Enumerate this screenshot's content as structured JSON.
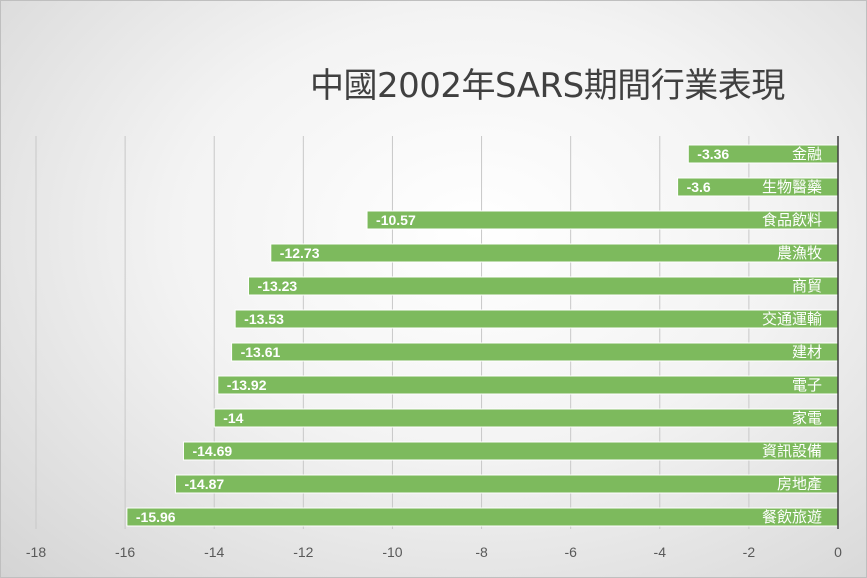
{
  "chart_data": {
    "type": "bar",
    "orientation": "horizontal",
    "title": "中國2002年SARS期間行業表現",
    "xlabel": "",
    "ylabel": "",
    "xlim": [
      -18,
      0
    ],
    "x_ticks": [
      -18,
      -16,
      -14,
      -12,
      -10,
      -8,
      -6,
      -4,
      -2,
      0
    ],
    "grid": "vertical",
    "legend": "none",
    "bar_color": "#7dba5d",
    "categories": [
      "金融",
      "生物醫藥",
      "食品飲料",
      "農漁牧",
      "商貿",
      "交通運輸",
      "建材",
      "電子",
      "家電",
      "資訊設備",
      "房地產",
      "餐飲旅遊"
    ],
    "values": [
      -3.36,
      -3.6,
      -10.57,
      -12.73,
      -13.23,
      -13.53,
      -13.61,
      -13.92,
      -14,
      -14.69,
      -14.87,
      -15.96
    ],
    "value_labels": [
      "-3.36",
      "-3.6",
      "-10.57",
      "-12.73",
      "-13.23",
      "-13.53",
      "-13.61",
      "-13.92",
      "-14",
      "-14.69",
      "-14.87",
      "-15.96"
    ]
  }
}
